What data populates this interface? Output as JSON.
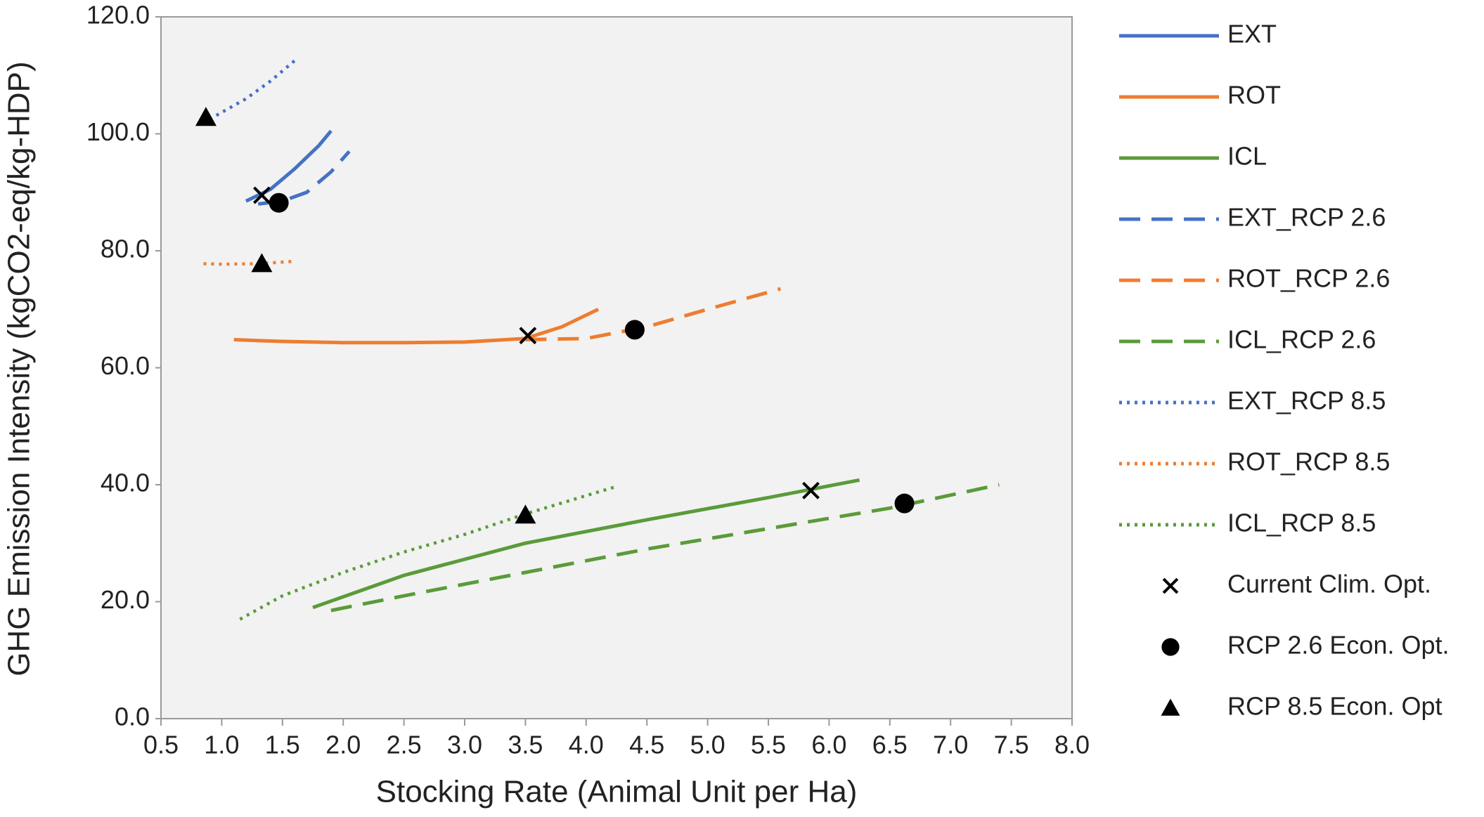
{
  "chart_data": {
    "type": "line",
    "xlabel": "Stocking Rate (Animal Unit per Ha)",
    "ylabel": "GHG Emission Intensity (kgCO2-eq/kg-HDP)",
    "xlim": [
      0.5,
      8.0
    ],
    "ylim": [
      0,
      120
    ],
    "xticks": [
      {
        "value": 0.5,
        "label": "0.5"
      },
      {
        "value": 1,
        "label": "1.0"
      },
      {
        "value": 1.5,
        "label": "1.5"
      },
      {
        "value": 2,
        "label": "2.0"
      },
      {
        "value": 2.5,
        "label": "2.5"
      },
      {
        "value": 3,
        "label": "3.0"
      },
      {
        "value": 3.5,
        "label": "3.5"
      },
      {
        "value": 4,
        "label": "4.0"
      },
      {
        "value": 4.5,
        "label": "4.5"
      },
      {
        "value": 5,
        "label": "5.0"
      },
      {
        "value": 5.5,
        "label": "5.5"
      },
      {
        "value": 6,
        "label": "6.0"
      },
      {
        "value": 6.5,
        "label": "6.5"
      },
      {
        "value": 7,
        "label": "7.0"
      },
      {
        "value": 7.5,
        "label": "7.5"
      },
      {
        "value": 8,
        "label": "8.0"
      }
    ],
    "yticks": [
      {
        "value": 0,
        "label": "0.0"
      },
      {
        "value": 20,
        "label": "20.0"
      },
      {
        "value": 40,
        "label": "40.0"
      },
      {
        "value": 60,
        "label": "60.0"
      },
      {
        "value": 80,
        "label": "80.0"
      },
      {
        "value": 100,
        "label": "100.0"
      },
      {
        "value": 120,
        "label": "120.0"
      }
    ],
    "legend": "right",
    "series": [
      {
        "name": "EXT",
        "color": "#4472c4",
        "style": "solid",
        "x": [
          1.2,
          1.4,
          1.6,
          1.8,
          1.9
        ],
        "values": [
          88.5,
          90.5,
          94,
          98,
          100.5
        ]
      },
      {
        "name": "ROT",
        "color": "#ed7d31",
        "style": "solid",
        "x": [
          1.1,
          1.5,
          2.0,
          2.5,
          3.0,
          3.5,
          3.8,
          4.1
        ],
        "values": [
          64.8,
          64.5,
          64.3,
          64.3,
          64.4,
          65,
          67,
          70
        ]
      },
      {
        "name": "ICL",
        "color": "#5b9b3a",
        "style": "solid",
        "x": [
          1.75,
          2.5,
          3.5,
          4.5,
          5.5,
          6.25
        ],
        "values": [
          19,
          24.5,
          30,
          34,
          37.8,
          40.8
        ]
      },
      {
        "name": "EXT_RCP 2.6",
        "color": "#4472c4",
        "style": "dashed",
        "x": [
          1.3,
          1.5,
          1.7,
          1.9,
          2.05
        ],
        "values": [
          88,
          88.5,
          90,
          93.5,
          97
        ]
      },
      {
        "name": "ROT_RCP 2.6",
        "color": "#ed7d31",
        "style": "dashed",
        "x": [
          3.5,
          4.0,
          4.5,
          5.0,
          5.6
        ],
        "values": [
          64.8,
          65,
          67,
          70,
          73.5
        ]
      },
      {
        "name": "ICL_RCP 2.6",
        "color": "#5b9b3a",
        "style": "dashed",
        "x": [
          1.9,
          2.5,
          3.5,
          4.5,
          5.5,
          6.5,
          7.4
        ],
        "values": [
          18.5,
          21,
          25,
          29,
          32.5,
          36,
          40
        ]
      },
      {
        "name": "EXT_RCP 8.5",
        "color": "#4472c4",
        "style": "dotted",
        "x": [
          0.9,
          1.2,
          1.4,
          1.6
        ],
        "values": [
          102.5,
          106,
          109,
          112.5
        ]
      },
      {
        "name": "ROT_RCP 8.5",
        "color": "#ed7d31",
        "style": "dotted",
        "x": [
          0.85,
          1.0,
          1.3,
          1.6
        ],
        "values": [
          77.8,
          77.7,
          77.8,
          78.2
        ]
      },
      {
        "name": "ICL_RCP 8.5",
        "color": "#5b9b3a",
        "style": "dotted",
        "x": [
          1.15,
          1.5,
          2.0,
          2.5,
          3.0,
          3.5,
          4.25
        ],
        "values": [
          17,
          21,
          25,
          28.5,
          31.5,
          35,
          39.7
        ]
      },
      {
        "name": "Current Clim. Opt.",
        "color": "#000000",
        "marker": "x",
        "x": [
          1.33,
          3.52,
          5.85
        ],
        "values": [
          89.5,
          65.5,
          39
        ]
      },
      {
        "name": "RCP 2.6 Econ. Opt.",
        "color": "#000000",
        "marker": "circle",
        "x": [
          1.47,
          4.4,
          6.62
        ],
        "values": [
          88.2,
          66.5,
          36.8
        ]
      },
      {
        "name": "RCP 8.5 Econ. Opt",
        "color": "#000000",
        "marker": "triangle",
        "x": [
          0.87,
          1.33,
          3.5
        ],
        "values": [
          102.8,
          77.8,
          34.8
        ]
      }
    ]
  }
}
